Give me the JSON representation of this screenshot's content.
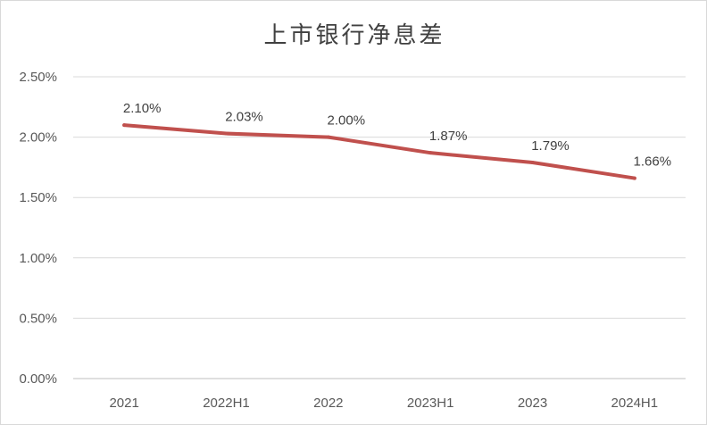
{
  "chart_data": {
    "type": "line",
    "title": "上市银行净息差",
    "xlabel": "",
    "ylabel": "",
    "categories": [
      "2021",
      "2022H1",
      "2022",
      "2023H1",
      "2023",
      "2024H1"
    ],
    "series": [
      {
        "values": [
          2.1,
          2.03,
          2.0,
          1.87,
          1.79,
          1.66
        ],
        "labels": [
          "2.10%",
          "2.03%",
          "2.00%",
          "1.87%",
          "1.79%",
          "1.66%"
        ],
        "color": "#c0504d"
      }
    ],
    "y_ticks": [
      "0.00%",
      "0.50%",
      "1.00%",
      "1.50%",
      "2.00%",
      "2.50%"
    ],
    "ylim": [
      0,
      2.5
    ],
    "grid": "horizontal",
    "legend": "none"
  }
}
